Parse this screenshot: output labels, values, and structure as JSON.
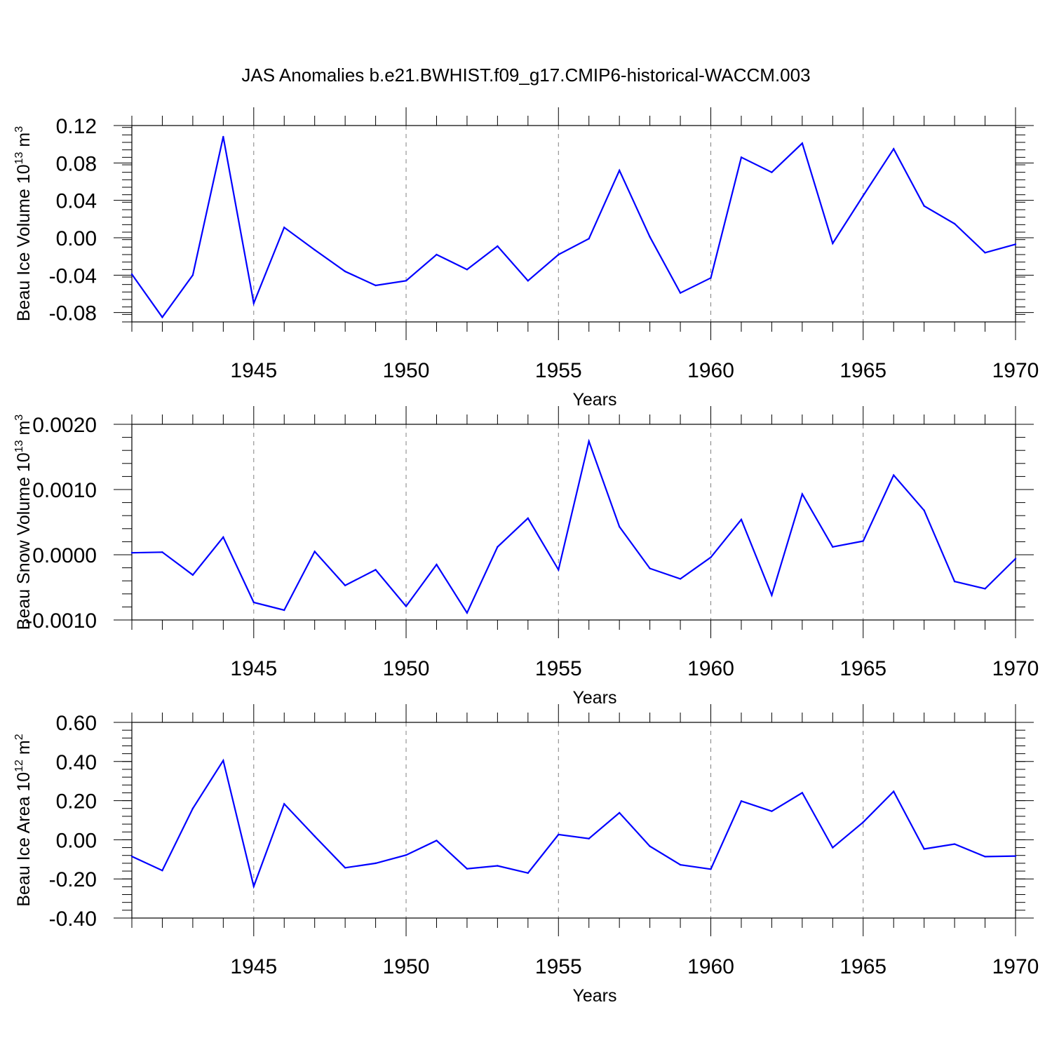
{
  "figure_title": "JAS Anomalies b.e21.BWHIST.f09_g17.CMIP6-historical-WACCM.003",
  "colors": {
    "line": "#0000ff",
    "axis": "#000000",
    "grid": "#808080",
    "background": "#ffffff"
  },
  "chart_data": [
    {
      "type": "line",
      "title": "JAS Anomalies b.e21.BWHIST.f09_g17.CMIP6-historical-WACCM.003",
      "xlabel": "Years",
      "ylabel": {
        "text": "Beau Ice Volume 10",
        "exp1": "13",
        "unit": " m",
        "exp2": "3"
      },
      "xlim": [
        1941,
        1970
      ],
      "ylim": [
        -0.09,
        0.12
      ],
      "xticks": [
        "1945",
        "1950",
        "1955",
        "1960",
        "1965",
        "1970"
      ],
      "yticks": [
        {
          "value": 0.12,
          "label": "0.12"
        },
        {
          "value": 0.08,
          "label": "0.08"
        },
        {
          "value": 0.04,
          "label": "0.04"
        },
        {
          "value": 0.0,
          "label": "0.00"
        },
        {
          "value": -0.04,
          "label": "-0.04"
        },
        {
          "value": -0.08,
          "label": "-0.08"
        }
      ],
      "yminor_step": 0.008,
      "x": [
        1941,
        1942,
        1943,
        1944,
        1945,
        1946,
        1947,
        1948,
        1949,
        1950,
        1951,
        1952,
        1953,
        1954,
        1955,
        1956,
        1957,
        1958,
        1959,
        1960,
        1961,
        1962,
        1963,
        1964,
        1965,
        1966,
        1967,
        1968,
        1969,
        1970
      ],
      "values": [
        -0.039,
        -0.085,
        -0.04,
        0.108,
        -0.07,
        0.011,
        -0.013,
        -0.036,
        -0.051,
        -0.046,
        -0.018,
        -0.034,
        -0.009,
        -0.046,
        -0.018,
        -0.001,
        0.072,
        0.001,
        -0.059,
        -0.043,
        0.086,
        0.07,
        0.101,
        -0.006,
        0.045,
        0.095,
        0.034,
        0.015,
        -0.016,
        -0.007
      ]
    },
    {
      "type": "line",
      "xlabel": "Years",
      "ylabel": {
        "text": "Beau Snow Volume 10",
        "exp1": "13",
        "unit": " m",
        "exp2": "3"
      },
      "xlim": [
        1941,
        1970
      ],
      "ylim": [
        -0.001,
        0.002
      ],
      "xticks": [
        "1945",
        "1950",
        "1955",
        "1960",
        "1965",
        "1970"
      ],
      "yticks": [
        {
          "value": 0.002,
          "label": "0.0020"
        },
        {
          "value": 0.001,
          "label": "0.0010"
        },
        {
          "value": 0.0,
          "label": "0.0000"
        },
        {
          "value": -0.001,
          "label": "-0.0010"
        }
      ],
      "yminor_step": 0.0002,
      "x": [
        1941,
        1942,
        1943,
        1944,
        1945,
        1946,
        1947,
        1948,
        1949,
        1950,
        1951,
        1952,
        1953,
        1954,
        1955,
        1956,
        1957,
        1958,
        1959,
        1960,
        1961,
        1962,
        1963,
        1964,
        1965,
        1966,
        1967,
        1968,
        1969,
        1970
      ],
      "values": [
        3e-05,
        4e-05,
        -0.00031,
        0.00027,
        -0.00073,
        -0.00085,
        5e-05,
        -0.00047,
        -0.00023,
        -0.00079,
        -0.00015,
        -0.00089,
        0.00012,
        0.00056,
        -0.00023,
        0.00174,
        0.00043,
        -0.00021,
        -0.00037,
        -4e-05,
        0.00054,
        -0.00062,
        0.00093,
        0.00012,
        0.00021,
        0.00122,
        0.00068,
        -0.00041,
        -0.00052,
        -6e-05
      ]
    },
    {
      "type": "line",
      "xlabel": "Years",
      "ylabel": {
        "text": "Beau Ice Area 10",
        "exp1": "12",
        "unit": " m",
        "exp2": "2"
      },
      "xlim": [
        1941,
        1970
      ],
      "ylim": [
        -0.4,
        0.6
      ],
      "xticks": [
        "1945",
        "1950",
        "1955",
        "1960",
        "1965",
        "1970"
      ],
      "yticks": [
        {
          "value": 0.6,
          "label": "0.60"
        },
        {
          "value": 0.4,
          "label": "0.40"
        },
        {
          "value": 0.2,
          "label": "0.20"
        },
        {
          "value": 0.0,
          "label": "0.00"
        },
        {
          "value": -0.2,
          "label": "-0.20"
        },
        {
          "value": -0.4,
          "label": "-0.40"
        }
      ],
      "yminor_step": 0.04,
      "x": [
        1941,
        1942,
        1943,
        1944,
        1945,
        1946,
        1947,
        1948,
        1949,
        1950,
        1951,
        1952,
        1953,
        1954,
        1955,
        1956,
        1957,
        1958,
        1959,
        1960,
        1961,
        1962,
        1963,
        1964,
        1965,
        1966,
        1967,
        1968,
        1969,
        1970
      ],
      "values": [
        -0.085,
        -0.157,
        0.16,
        0.405,
        -0.238,
        0.183,
        0.018,
        -0.143,
        -0.12,
        -0.078,
        -0.004,
        -0.148,
        -0.133,
        -0.17,
        0.027,
        0.006,
        0.138,
        -0.033,
        -0.128,
        -0.15,
        0.198,
        0.146,
        0.24,
        -0.04,
        0.09,
        0.247,
        -0.047,
        -0.022,
        -0.086,
        -0.083
      ]
    }
  ]
}
